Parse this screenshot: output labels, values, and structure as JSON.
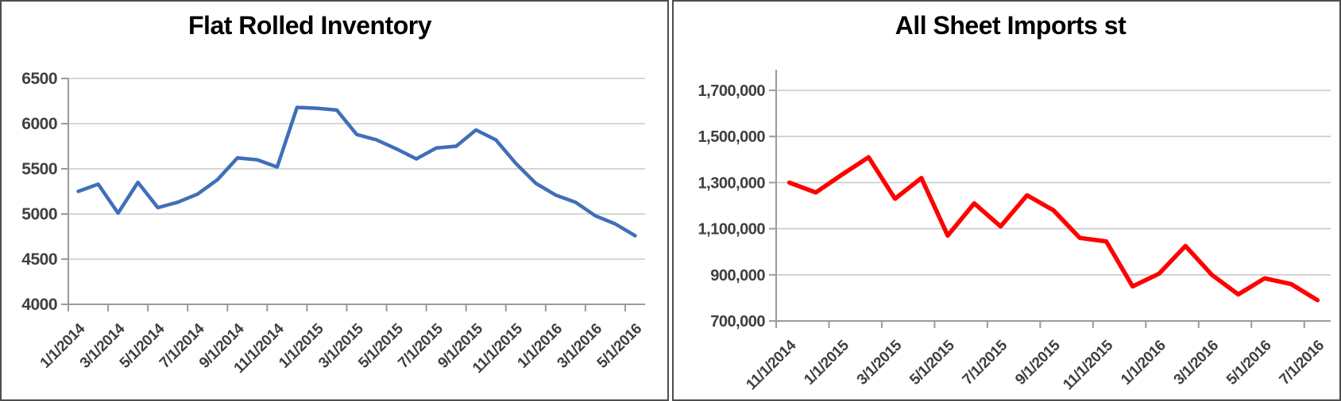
{
  "style": {
    "background": "#ffffff",
    "panel_border_color": "#4d4d4d",
    "gridline_color": "#c9c9c9",
    "axis_color": "#9b9b9b",
    "tick_color": "#9b9b9b",
    "tick_label_color": "#3f3f3f",
    "title_color": "#000000"
  },
  "chart_data": [
    {
      "type": "line",
      "title": "Flat Rolled Inventory",
      "line_color": "#3f6fb8",
      "legend": "none",
      "grid": true,
      "x_label_every": 2,
      "categories": [
        "1/1/2014",
        "2/1/2014",
        "3/1/2014",
        "4/1/2014",
        "5/1/2014",
        "6/1/2014",
        "7/1/2014",
        "8/1/2014",
        "9/1/2014",
        "10/1/2014",
        "11/1/2014",
        "12/1/2014",
        "1/1/2015",
        "2/1/2015",
        "3/1/2015",
        "4/1/2015",
        "5/1/2015",
        "6/1/2015",
        "7/1/2015",
        "8/1/2015",
        "9/1/2015",
        "10/1/2015",
        "11/1/2015",
        "12/1/2015",
        "1/1/2016",
        "2/1/2016",
        "3/1/2016",
        "4/1/2016",
        "5/1/2016"
      ],
      "values": [
        5250,
        5330,
        5010,
        5350,
        5070,
        5130,
        5220,
        5380,
        5620,
        5600,
        5520,
        6180,
        6170,
        6150,
        5880,
        5820,
        5720,
        5610,
        5730,
        5750,
        5930,
        5820,
        5560,
        5340,
        5210,
        5130,
        4980,
        4890,
        4760
      ],
      "ylim": [
        4000,
        6500
      ],
      "y_gridlines": [
        4000,
        4500,
        5000,
        5500,
        6000,
        6500
      ],
      "y_tick_labels": [
        "4000",
        "4500",
        "5000",
        "5500",
        "6000",
        "6500"
      ],
      "xlabel": "",
      "ylabel": ""
    },
    {
      "type": "line",
      "title": "All Sheet Imports st",
      "line_color": "#ff0000",
      "legend": "none",
      "grid": true,
      "x_label_every": 2,
      "categories": [
        "11/1/2014",
        "12/1/2014",
        "1/1/2015",
        "2/1/2015",
        "3/1/2015",
        "4/1/2015",
        "5/1/2015",
        "6/1/2015",
        "7/1/2015",
        "8/1/2015",
        "9/1/2015",
        "10/1/2015",
        "11/1/2015",
        "12/1/2015",
        "1/1/2016",
        "2/1/2016",
        "3/1/2016",
        "4/1/2016",
        "5/1/2016",
        "6/1/2016",
        "7/1/2016"
      ],
      "values": [
        1300000,
        1257000,
        1335000,
        1410000,
        1230000,
        1320000,
        1070000,
        1210000,
        1110000,
        1245000,
        1180000,
        1060000,
        1045000,
        850000,
        905000,
        1025000,
        900000,
        815000,
        885000,
        860000,
        790000
      ],
      "ylim": [
        700000,
        1700000
      ],
      "y_gridlines": [
        700000,
        900000,
        1100000,
        1300000,
        1500000,
        1700000
      ],
      "y_tick_labels": [
        "700,000",
        "900,000",
        "1,100,000",
        "1,300,000",
        "1,500,000",
        "1,700,000"
      ],
      "xlabel": "",
      "ylabel": ""
    }
  ]
}
